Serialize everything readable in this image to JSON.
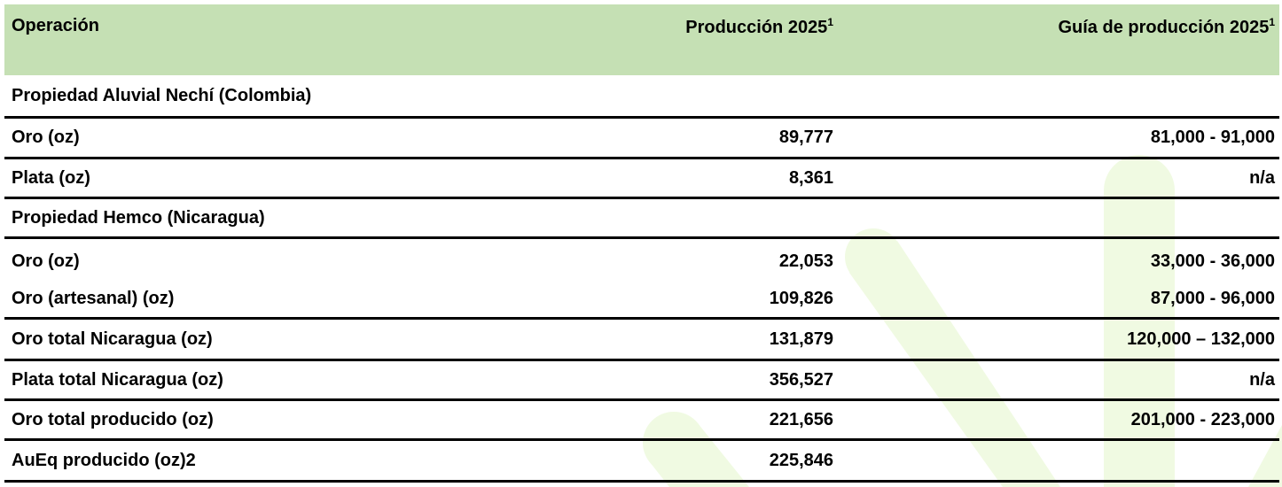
{
  "header": {
    "operation": "Operación",
    "production": "Producción 2025",
    "production_sup": "1",
    "guidance": "Guía de producción 2025",
    "guidance_sup": "1"
  },
  "colors": {
    "header_bg": "#c5e0b4",
    "watermark": "#f0fae2"
  },
  "rows": [
    {
      "label": "Propiedad Aluvial Nechí (Colombia)",
      "production": "",
      "guidance": ""
    },
    {
      "label": "Oro (oz)",
      "production": "89,777",
      "guidance": "81,000 - 91,000"
    },
    {
      "label": "Plata (oz)",
      "production": "8,361",
      "guidance": "n/a"
    },
    {
      "label": "Propiedad Hemco (Nicaragua)",
      "production": "",
      "guidance": ""
    },
    {
      "label": "Oro (oz)",
      "production": "22,053",
      "guidance": "33,000 - 36,000"
    },
    {
      "label": "Oro (artesanal) (oz)",
      "production": "109,826",
      "guidance": "87,000 - 96,000"
    },
    {
      "label": "Oro total Nicaragua (oz)",
      "production": "131,879",
      "guidance": "120,000 – 132,000"
    },
    {
      "label": "Plata total Nicaragua (oz)",
      "production": "356,527",
      "guidance": "n/a"
    },
    {
      "label": "Oro total producido (oz)",
      "production": "221,656",
      "guidance": "201,000 - 223,000"
    },
    {
      "label": "AuEq producido (oz)2",
      "production": "225,846",
      "guidance": ""
    }
  ]
}
